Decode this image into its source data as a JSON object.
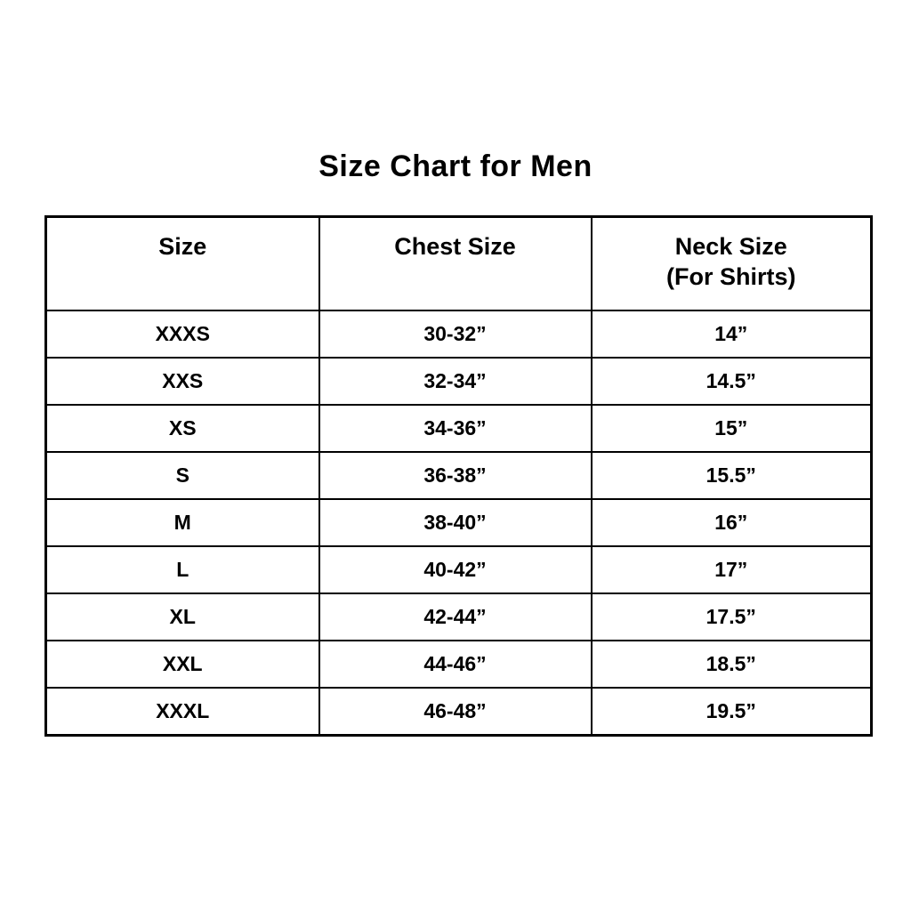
{
  "page": {
    "title": "Size Chart for Men"
  },
  "colors": {
    "background": "#ffffff",
    "text": "#000000",
    "border": "#000000"
  },
  "table": {
    "headers": [
      {
        "label": "Size"
      },
      {
        "label": "Chest Size"
      },
      {
        "label": "Neck Size",
        "sub": "(For Shirts)"
      }
    ],
    "rows": [
      {
        "size": "XXXS",
        "chest": "30-32”",
        "neck": "14”"
      },
      {
        "size": "XXS",
        "chest": "32-34”",
        "neck": "14.5”"
      },
      {
        "size": "XS",
        "chest": "34-36”",
        "neck": "15”"
      },
      {
        "size": "S",
        "chest": "36-38”",
        "neck": "15.5”"
      },
      {
        "size": "M",
        "chest": "38-40”",
        "neck": "16”"
      },
      {
        "size": "L",
        "chest": "40-42”",
        "neck": "17”"
      },
      {
        "size": "XL",
        "chest": "42-44”",
        "neck": "17.5”"
      },
      {
        "size": "XXL",
        "chest": "44-46”",
        "neck": "18.5”"
      },
      {
        "size": "XXXL",
        "chest": "46-48”",
        "neck": "19.5”"
      }
    ]
  }
}
